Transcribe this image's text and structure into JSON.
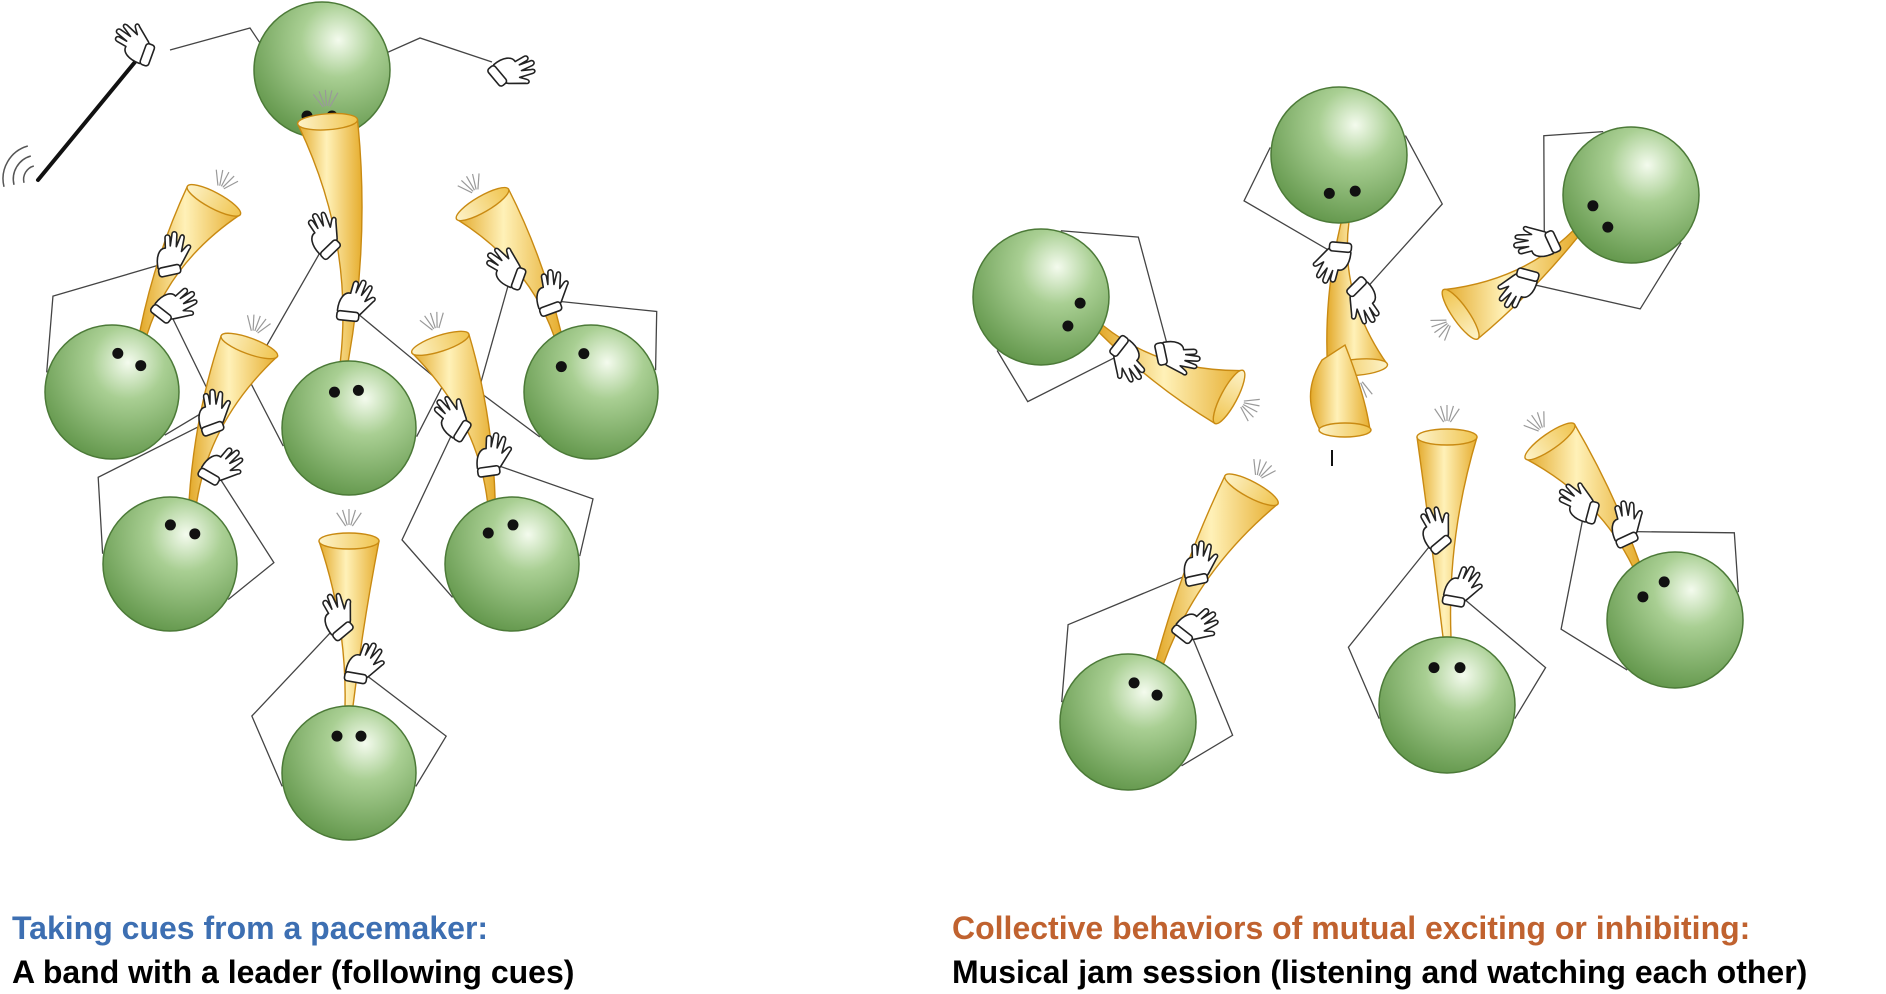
{
  "colors": {
    "left_title": "#3d6fb2",
    "right_title": "#c0622f",
    "head": "#86b46e",
    "horn": "#f0c24e"
  },
  "left": {
    "title": "Taking cues from a pacemaker:",
    "subtitle": "A band with a leader (following cues)",
    "leader_icon": "conductor-with-baton-icon",
    "musician_icon": "horn-player-icon"
  },
  "right": {
    "title": "Collective behaviors of mutual exciting or inhibiting:",
    "subtitle": "Musical jam session (listening and watching each other)",
    "musician_icon": "horn-player-icon"
  }
}
